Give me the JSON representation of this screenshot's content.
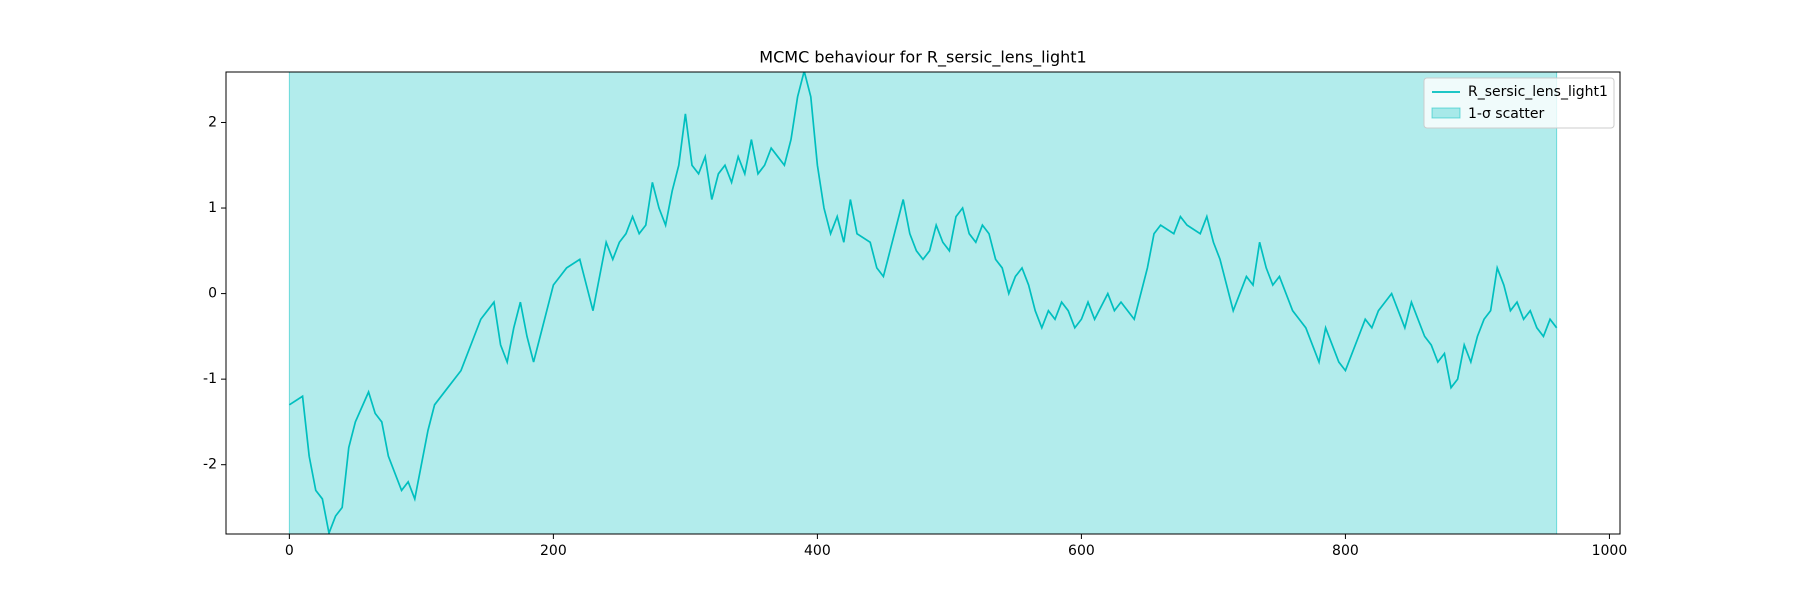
{
  "chart_data": {
    "type": "line",
    "title": "MCMC behaviour for R_sersic_lens_light1",
    "x": [
      0,
      10,
      15,
      20,
      25,
      30,
      35,
      40,
      45,
      50,
      60,
      65,
      70,
      75,
      80,
      85,
      90,
      95,
      100,
      105,
      110,
      120,
      130,
      140,
      145,
      150,
      155,
      160,
      165,
      170,
      175,
      180,
      185,
      190,
      195,
      200,
      205,
      210,
      220,
      225,
      230,
      235,
      240,
      245,
      250,
      255,
      260,
      265,
      270,
      275,
      280,
      285,
      290,
      295,
      300,
      305,
      310,
      315,
      320,
      325,
      330,
      335,
      340,
      345,
      350,
      355,
      360,
      365,
      370,
      375,
      380,
      385,
      390,
      395,
      400,
      405,
      410,
      415,
      420,
      425,
      430,
      440,
      445,
      450,
      455,
      460,
      465,
      470,
      475,
      480,
      485,
      490,
      495,
      500,
      505,
      510,
      515,
      520,
      525,
      530,
      535,
      540,
      545,
      550,
      555,
      560,
      565,
      570,
      575,
      580,
      585,
      590,
      595,
      600,
      605,
      610,
      620,
      625,
      630,
      640,
      645,
      650,
      655,
      660,
      670,
      675,
      680,
      690,
      695,
      700,
      705,
      710,
      715,
      720,
      725,
      730,
      735,
      740,
      745,
      750,
      755,
      760,
      765,
      770,
      775,
      780,
      785,
      790,
      795,
      800,
      805,
      810,
      815,
      820,
      825,
      830,
      835,
      840,
      845,
      850,
      855,
      860,
      865,
      870,
      875,
      880,
      885,
      890,
      895,
      900,
      905,
      910,
      915,
      920,
      925,
      930,
      935,
      940,
      945,
      950,
      955,
      960
    ],
    "series": [
      {
        "name": "R_sersic_lens_light1",
        "color": "#00bfbf",
        "values": [
          -1.3,
          -1.2,
          -1.9,
          -2.3,
          -2.4,
          -2.8,
          -2.6,
          -2.5,
          -1.8,
          -1.5,
          -1.15,
          -1.4,
          -1.5,
          -1.9,
          -2.1,
          -2.3,
          -2.2,
          -2.4,
          -2.0,
          -1.6,
          -1.3,
          -1.1,
          -0.9,
          -0.5,
          -0.3,
          -0.2,
          -0.1,
          -0.6,
          -0.8,
          -0.4,
          -0.1,
          -0.5,
          -0.8,
          -0.5,
          -0.2,
          0.1,
          0.2,
          0.3,
          0.4,
          0.1,
          -0.2,
          0.2,
          0.6,
          0.4,
          0.6,
          0.7,
          0.9,
          0.7,
          0.8,
          1.3,
          1.0,
          0.8,
          1.2,
          1.5,
          2.1,
          1.5,
          1.4,
          1.6,
          1.1,
          1.4,
          1.5,
          1.3,
          1.6,
          1.4,
          1.8,
          1.4,
          1.5,
          1.7,
          1.6,
          1.5,
          1.8,
          2.3,
          2.6,
          2.3,
          1.5,
          1.0,
          0.7,
          0.9,
          0.6,
          1.1,
          0.7,
          0.6,
          0.3,
          0.2,
          0.5,
          0.8,
          1.1,
          0.7,
          0.5,
          0.4,
          0.5,
          0.8,
          0.6,
          0.5,
          0.9,
          1.0,
          0.7,
          0.6,
          0.8,
          0.7,
          0.4,
          0.3,
          0.0,
          0.2,
          0.3,
          0.1,
          -0.2,
          -0.4,
          -0.2,
          -0.3,
          -0.1,
          -0.2,
          -0.4,
          -0.3,
          -0.1,
          -0.3,
          0.0,
          -0.2,
          -0.1,
          -0.3,
          0.0,
          0.3,
          0.7,
          0.8,
          0.7,
          0.9,
          0.8,
          0.7,
          0.9,
          0.6,
          0.4,
          0.1,
          -0.2,
          0.0,
          0.2,
          0.1,
          0.6,
          0.3,
          0.1,
          0.2,
          0.0,
          -0.2,
          -0.3,
          -0.4,
          -0.6,
          -0.8,
          -0.4,
          -0.6,
          -0.8,
          -0.9,
          -0.7,
          -0.5,
          -0.3,
          -0.4,
          -0.2,
          -0.1,
          0.0,
          -0.2,
          -0.4,
          -0.1,
          -0.3,
          -0.5,
          -0.6,
          -0.8,
          -0.7,
          -1.1,
          -1.0,
          -0.6,
          -0.8,
          -0.5,
          -0.3,
          -0.2,
          0.3,
          0.1,
          -0.2,
          -0.1,
          -0.3,
          -0.2,
          -0.4,
          -0.5,
          -0.3,
          -0.4
        ]
      }
    ],
    "band": {
      "name": "1-σ scatter",
      "color": "#00bfbf",
      "x": [
        0,
        960
      ],
      "lower": [
        -3,
        -3
      ],
      "upper": [
        3,
        3
      ]
    },
    "xlim": [
      -48,
      1008
    ],
    "xticks": [
      0,
      200,
      400,
      600,
      800,
      1000
    ],
    "ylim": [
      -2.81,
      2.59
    ],
    "yticks": [
      -2,
      -1,
      0,
      1,
      2
    ],
    "legend": "upper right"
  }
}
